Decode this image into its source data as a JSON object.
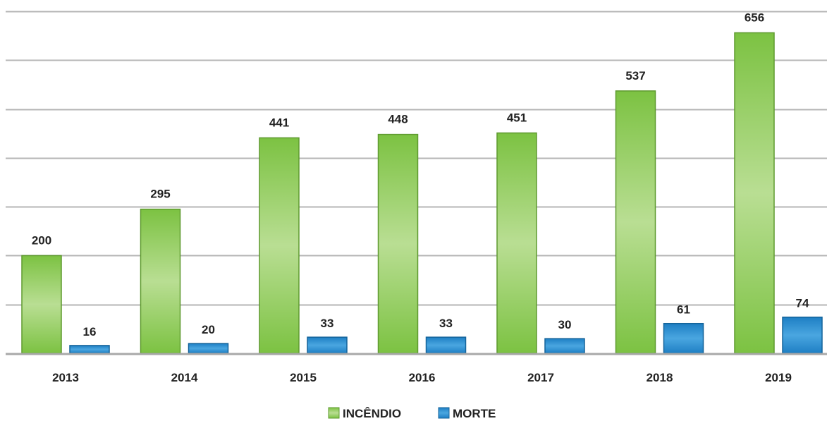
{
  "chart_data": {
    "type": "bar",
    "title": "",
    "xlabel": "",
    "ylabel": "",
    "categories": [
      "2013",
      "2014",
      "2015",
      "2016",
      "2017",
      "2018",
      "2019"
    ],
    "series": [
      {
        "name": "INCÊNDIO",
        "values": [
          200,
          295,
          441,
          448,
          451,
          537,
          656
        ],
        "labels": [
          "200",
          "295",
          "441",
          "448",
          "451",
          "537",
          "656"
        ],
        "color": "#7cc242",
        "color_light": "#b9de93"
      },
      {
        "name": "MORTE",
        "values": [
          16,
          20,
          33,
          33,
          30,
          61,
          74
        ],
        "labels": [
          "16",
          "20",
          "33",
          "33",
          "30",
          "61",
          "74"
        ],
        "color": "#1e7fc4",
        "color_light": "#4aa6e0"
      }
    ],
    "ylim": [
      0,
      700
    ],
    "grid": true,
    "y_axis_labels_visible": false,
    "legend_position": "bottom-center"
  }
}
